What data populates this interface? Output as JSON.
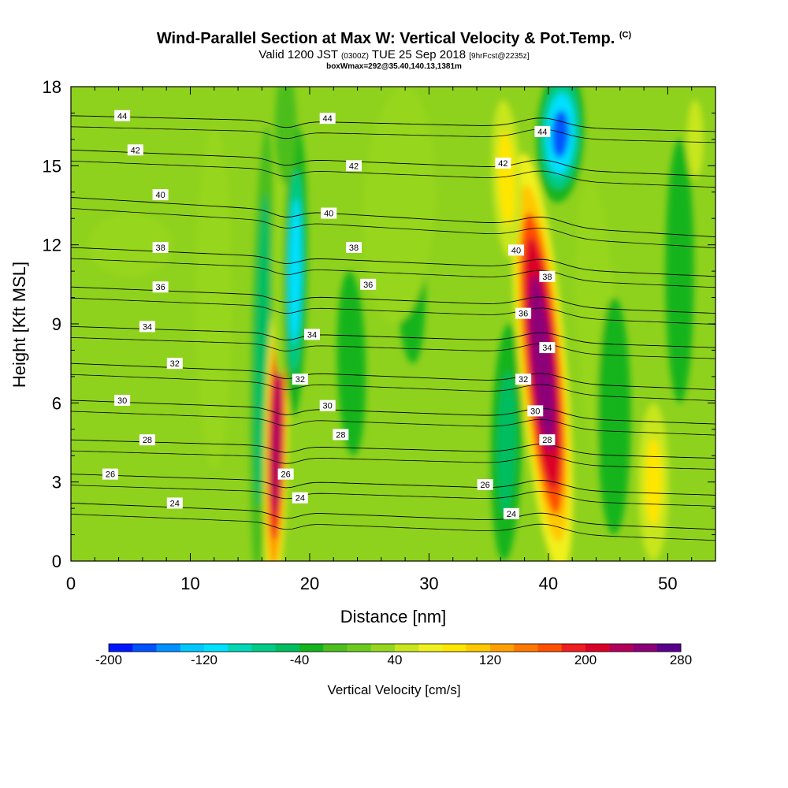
{
  "header": {
    "title": "Wind-Parallel Section at Max W: Vertical Velocity & Pot.Temp.",
    "title_unit": "(C)",
    "valid_prefix": "Valid 1200 JST",
    "valid_utc": "(0300Z)",
    "valid_date": "TUE 25 Sep 2018",
    "forecast_info": "[9hrFcst@2235z]",
    "box_info": "boxWmax=292@35.40,140.13,1381m"
  },
  "chart_data": {
    "type": "heatmap",
    "xlabel": "Distance [nm]",
    "ylabel": "Height [Kft MSL]",
    "xlim": [
      0,
      54
    ],
    "ylim": [
      0,
      18
    ],
    "x_ticks": [
      0,
      10,
      20,
      30,
      40,
      50
    ],
    "y_ticks": [
      0,
      3,
      6,
      9,
      12,
      15,
      18
    ],
    "colorbar": {
      "label": "Vertical Velocity [cm/s]",
      "min": -200,
      "max": 280,
      "step": 20,
      "tick_labels": [
        "-200",
        "-120",
        "-40",
        "40",
        "120",
        "200",
        "280"
      ],
      "colors": [
        "#0018ff",
        "#0052ff",
        "#0090ff",
        "#00c8ff",
        "#00e0ff",
        "#00d8b8",
        "#00cc88",
        "#00be60",
        "#14b41e",
        "#4cbe1e",
        "#6ccb1e",
        "#96d61e",
        "#c8e61e",
        "#f0f01e",
        "#ffe600",
        "#ffc800",
        "#ffa000",
        "#ff7800",
        "#ff5000",
        "#f01e1e",
        "#dc0028",
        "#b4005a",
        "#8c0078",
        "#5a008c"
      ]
    },
    "theta_isentropes": [
      {
        "label": "24",
        "y_left": 2.2,
        "y_right": 1.2
      },
      {
        "label": "26",
        "y_left": 3.3,
        "y_right": 2.5
      },
      {
        "label": "28",
        "y_left": 4.6,
        "y_right": 3.9
      },
      {
        "label": "30",
        "y_left": 6.1,
        "y_right": 5.2
      },
      {
        "label": "32",
        "y_left": 7.5,
        "y_right": 6.5
      },
      {
        "label": "34",
        "y_left": 8.9,
        "y_right": 8.1
      },
      {
        "label": "36",
        "y_left": 10.4,
        "y_right": 9.4
      },
      {
        "label": "38",
        "y_left": 11.9,
        "y_right": 10.8
      },
      {
        "label": "40",
        "y_left": 13.8,
        "y_right": 12.3
      },
      {
        "label": "42",
        "y_left": 15.6,
        "y_right": 14.6
      },
      {
        "label": "44",
        "y_left": 16.9,
        "y_right": 16.3
      }
    ],
    "contour_labels": [
      {
        "text": "44",
        "x": 4.3,
        "y": 16.9
      },
      {
        "text": "44",
        "x": 21.5,
        "y": 16.8
      },
      {
        "text": "44",
        "x": 39.5,
        "y": 16.3
      },
      {
        "text": "42",
        "x": 5.4,
        "y": 15.6
      },
      {
        "text": "42",
        "x": 23.7,
        "y": 15.0
      },
      {
        "text": "42",
        "x": 36.2,
        "y": 15.1
      },
      {
        "text": "40",
        "x": 7.5,
        "y": 13.9
      },
      {
        "text": "40",
        "x": 21.6,
        "y": 13.2
      },
      {
        "text": "40",
        "x": 37.3,
        "y": 11.8
      },
      {
        "text": "38",
        "x": 7.5,
        "y": 11.9
      },
      {
        "text": "38",
        "x": 23.7,
        "y": 11.9
      },
      {
        "text": "38",
        "x": 39.9,
        "y": 10.8
      },
      {
        "text": "36",
        "x": 7.5,
        "y": 10.4
      },
      {
        "text": "36",
        "x": 24.9,
        "y": 10.5
      },
      {
        "text": "36",
        "x": 37.9,
        "y": 9.4
      },
      {
        "text": "34",
        "x": 6.4,
        "y": 8.9
      },
      {
        "text": "34",
        "x": 20.2,
        "y": 8.6
      },
      {
        "text": "34",
        "x": 39.9,
        "y": 8.1
      },
      {
        "text": "32",
        "x": 8.7,
        "y": 7.5
      },
      {
        "text": "32",
        "x": 19.2,
        "y": 6.9
      },
      {
        "text": "32",
        "x": 37.9,
        "y": 6.9
      },
      {
        "text": "30",
        "x": 4.3,
        "y": 6.1
      },
      {
        "text": "30",
        "x": 21.5,
        "y": 5.9
      },
      {
        "text": "30",
        "x": 38.9,
        "y": 5.7
      },
      {
        "text": "28",
        "x": 6.4,
        "y": 4.6
      },
      {
        "text": "28",
        "x": 22.6,
        "y": 4.8
      },
      {
        "text": "28",
        "x": 39.9,
        "y": 4.6
      },
      {
        "text": "26",
        "x": 3.3,
        "y": 3.3
      },
      {
        "text": "26",
        "x": 18.0,
        "y": 3.3
      },
      {
        "text": "26",
        "x": 34.7,
        "y": 2.9
      },
      {
        "text": "24",
        "x": 8.7,
        "y": 2.2
      },
      {
        "text": "24",
        "x": 19.2,
        "y": 2.4
      },
      {
        "text": "24",
        "x": 36.9,
        "y": 1.8
      }
    ]
  }
}
